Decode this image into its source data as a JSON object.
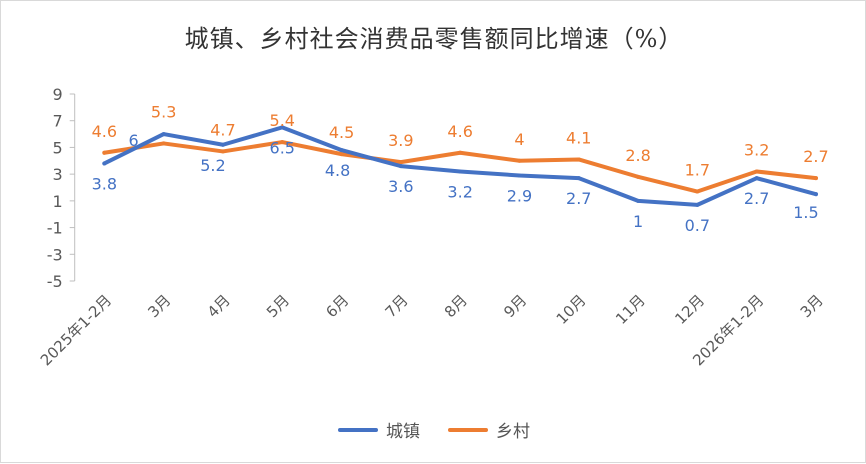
{
  "chart_data": {
    "type": "line",
    "title": "城镇、乡村社会消费品零售额同比增速（%）",
    "xlabel": "",
    "ylabel": "",
    "ylim": [
      -5,
      9
    ],
    "yticks": [
      9,
      7,
      5,
      3,
      1,
      -1,
      -3,
      -5
    ],
    "grid": false,
    "legend_position": "bottom",
    "categories": [
      "2025年1-2月",
      "3月",
      "4月",
      "5月",
      "6月",
      "7月",
      "8月",
      "9月",
      "10月",
      "11月",
      "12月",
      "2026年1-2月",
      "3月"
    ],
    "series": [
      {
        "name": "城镇",
        "color": "#4472C4",
        "values": [
          3.8,
          6,
          5.2,
          6.5,
          4.8,
          3.6,
          3.2,
          2.9,
          2.7,
          1,
          0.7,
          2.7,
          1.5
        ]
      },
      {
        "name": "乡村",
        "color": "#ED7D31",
        "values": [
          4.6,
          5.3,
          4.7,
          5.4,
          4.5,
          3.9,
          4.6,
          4,
          4.1,
          2.8,
          1.7,
          3.2,
          2.7
        ]
      }
    ]
  }
}
